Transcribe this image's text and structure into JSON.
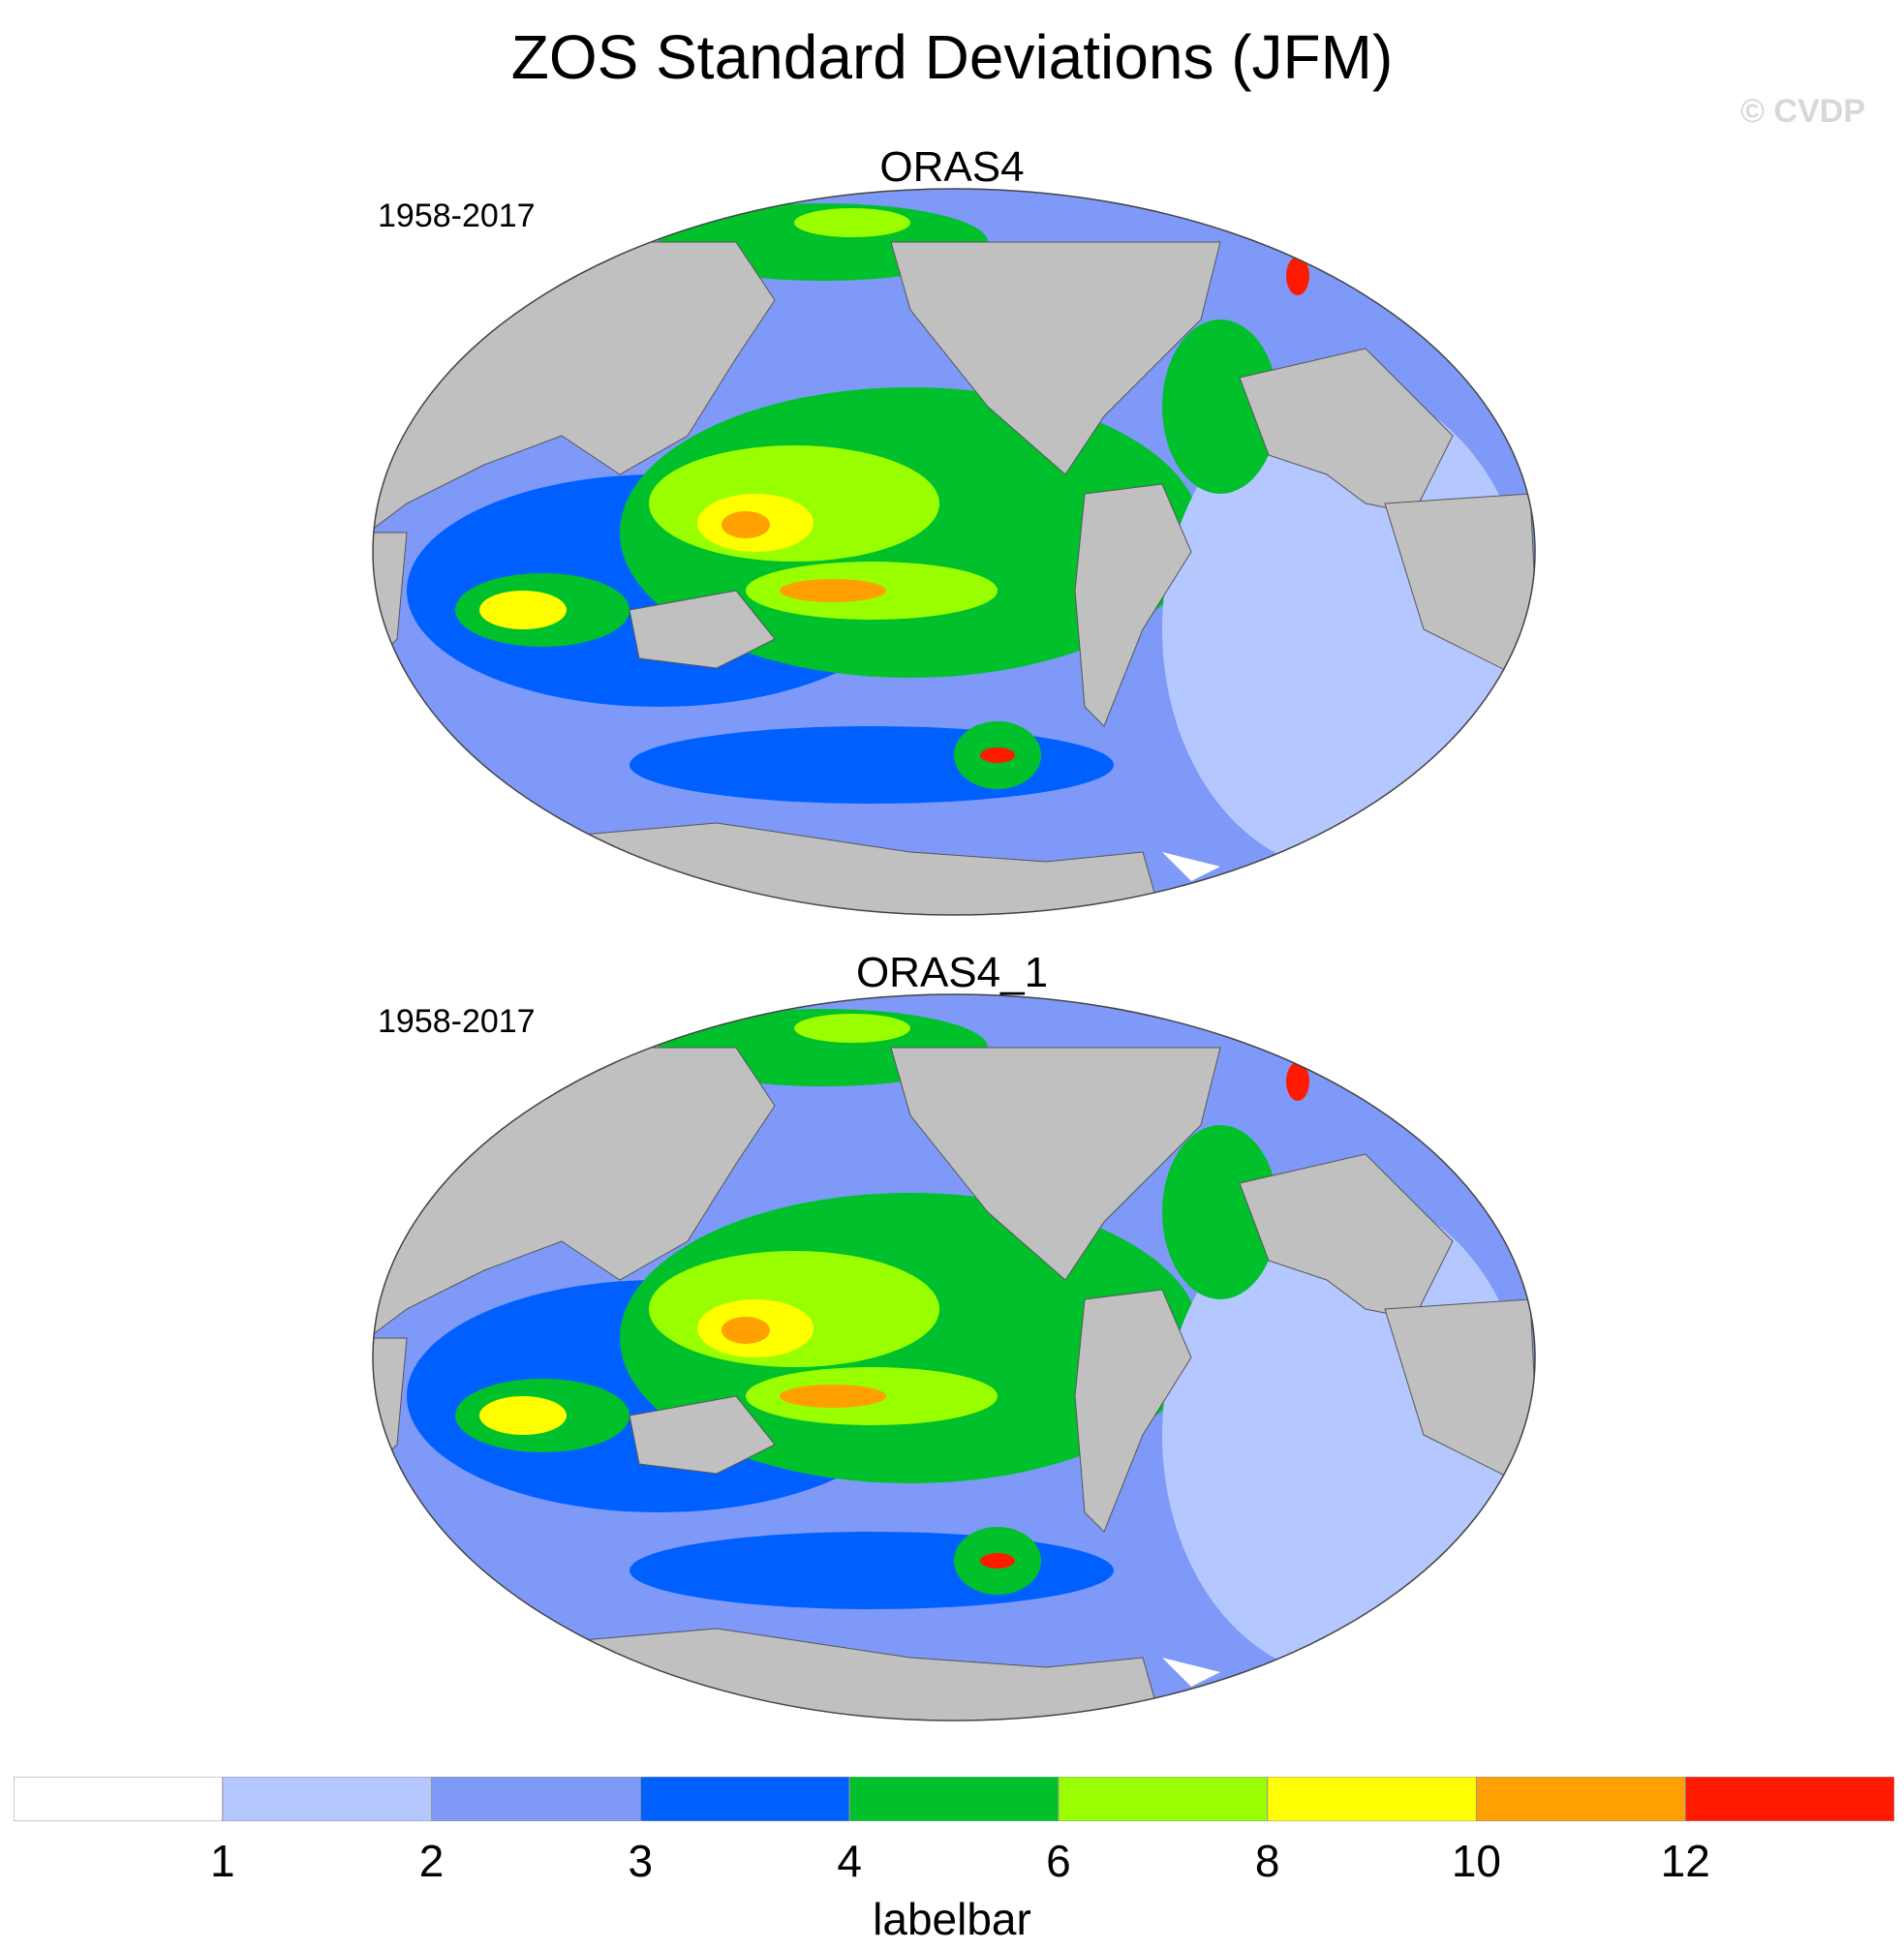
{
  "title": "ZOS Standard Deviations (JFM)",
  "watermark": "© CVDP",
  "panels": [
    {
      "name": "ORAS4",
      "period": "1958-2017"
    },
    {
      "name": "ORAS4_1",
      "period": "1958-2017"
    }
  ],
  "labelbar": {
    "title": "labelbar",
    "ticks": [
      "1",
      "2",
      "3",
      "4",
      "6",
      "8",
      "10",
      "12"
    ],
    "colors": [
      "#ffffff",
      "#b4c8ff",
      "#7f99f8",
      "#0060ff",
      "#00c02c",
      "#99ff00",
      "#ffff00",
      "#ffa000",
      "#ff1a00"
    ]
  },
  "map_colors": {
    "land": "#c0c0c0",
    "coast": "#555555"
  }
}
